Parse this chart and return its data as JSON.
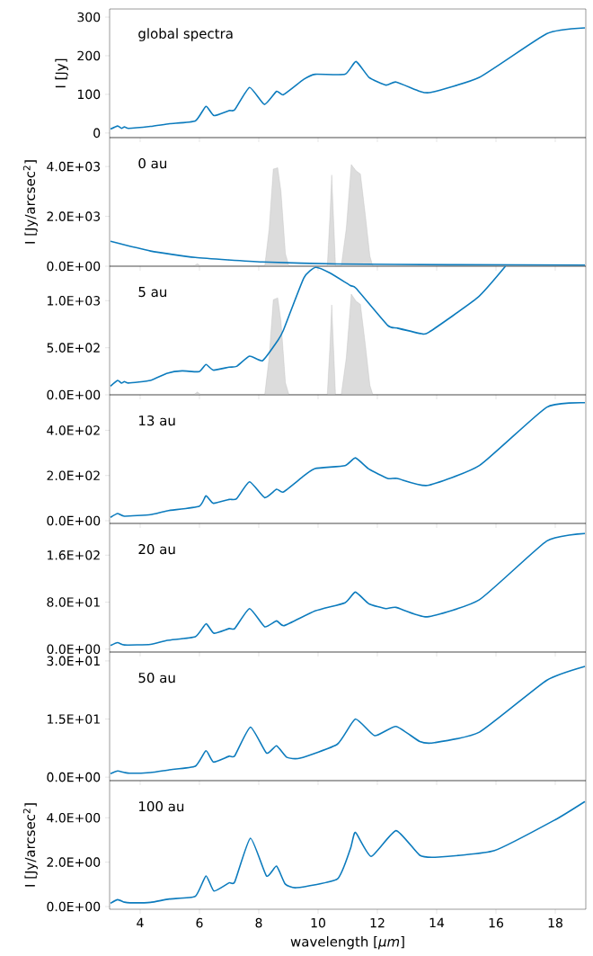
{
  "chart_data": [
    {
      "type": "line",
      "annotations": [
        "global spectra"
      ],
      "ylabel": "I [Jy]",
      "xlim": [
        2.97,
        19.03
      ],
      "ylim": [
        -12,
        321
      ],
      "xticks": [
        4,
        6,
        8,
        10,
        12,
        14,
        16,
        18
      ],
      "yticks": [
        0,
        100,
        200,
        300
      ],
      "tick_labels": "y",
      "series": [
        {
          "color": "#0c7bbd",
          "x": [
            3.0,
            3.24,
            3.37,
            3.47,
            3.6,
            4.35,
            5.0,
            5.86,
            6.22,
            6.49,
            7.0,
            7.19,
            7.69,
            8.19,
            8.6,
            8.83,
            9.52,
            9.9,
            10.91,
            11.28,
            11.72,
            12.29,
            12.63,
            13.43,
            13.8,
            15.44,
            17.71,
            19.0
          ],
          "values": [
            10,
            18,
            12,
            16,
            12,
            17,
            24,
            31,
            69,
            45,
            58,
            60,
            118,
            74,
            108,
            99,
            139,
            152,
            152,
            185,
            144,
            124,
            132,
            108,
            105,
            144,
            257,
            272
          ]
        }
      ]
    },
    {
      "type": "line",
      "annotations": [
        "0 au"
      ],
      "ylabel": "I [Jy/arcsec$^{2}$]",
      "xlim": [
        2.97,
        19.03
      ],
      "ylim": [
        0,
        5160
      ],
      "xticks": [
        4,
        6,
        8,
        10,
        12,
        14,
        16,
        18
      ],
      "yticks": [
        {
          "value": 0,
          "label": "0.0E+00"
        },
        {
          "value": 2000,
          "label": "2.0E+03"
        },
        {
          "value": 4000,
          "label": "4.0E+03"
        }
      ],
      "tick_labels": "y",
      "series": [
        {
          "type": "area",
          "color": "#dcdcdc",
          "x": [
            5.8,
            5.93,
            6.05,
            8.2,
            8.35,
            8.49,
            8.64,
            8.75,
            8.9,
            9.02,
            10.31,
            10.4,
            10.46,
            10.52,
            10.59,
            10.78,
            10.95,
            11.12,
            11.28,
            11.43,
            11.6,
            11.75,
            11.85
          ],
          "values": [
            0,
            100,
            0,
            0,
            1500,
            3900,
            3950,
            3000,
            500,
            0,
            0,
            2000,
            3660,
            2000,
            0,
            0,
            1500,
            4080,
            3830,
            3700,
            2000,
            400,
            0
          ]
        },
        {
          "color": "#0c7bbd",
          "x": [
            3.0,
            4.35,
            5.86,
            8.13,
            10.65,
            14.43,
            19.0
          ],
          "values": [
            1000,
            610,
            350,
            170,
            90,
            60,
            45
          ]
        }
      ]
    },
    {
      "type": "line",
      "annotations": [
        "5 au"
      ],
      "xlim": [
        2.97,
        19.03
      ],
      "ylim": [
        0,
        1366
      ],
      "xticks": [
        4,
        6,
        8,
        10,
        12,
        14,
        16,
        18
      ],
      "yticks": [
        {
          "value": 0,
          "label": "0.0E+00"
        },
        {
          "value": 500,
          "label": "5.0E+02"
        },
        {
          "value": 1000,
          "label": "1.0E+03"
        }
      ],
      "tick_labels": "y",
      "series": [
        {
          "type": "area",
          "color": "#dcdcdc",
          "x": [
            5.8,
            5.93,
            6.05,
            8.2,
            8.35,
            8.49,
            8.64,
            8.75,
            8.9,
            9.02,
            10.31,
            10.4,
            10.46,
            10.52,
            10.59,
            10.78,
            10.95,
            11.12,
            11.28,
            11.43,
            11.6,
            11.75,
            11.85
          ],
          "values": [
            0,
            30,
            0,
            0,
            400,
            1010,
            1030,
            780,
            130,
            0,
            0,
            520,
            955,
            520,
            0,
            0,
            390,
            1070,
            995,
            960,
            520,
            100,
            0
          ]
        },
        {
          "color": "#0c7bbd",
          "x": [
            3.0,
            3.24,
            3.37,
            3.47,
            3.6,
            4.35,
            4.92,
            5.42,
            5.99,
            6.22,
            6.47,
            7.0,
            7.25,
            7.69,
            8.13,
            8.64,
            8.83,
            9.52,
            9.92,
            10.4,
            11.09,
            11.28,
            12.35,
            12.67,
            13.49,
            13.74,
            15.38,
            16.32
          ],
          "values": [
            93,
            153,
            125,
            141,
            125,
            153,
            230,
            254,
            246,
            322,
            262,
            294,
            302,
            411,
            363,
            576,
            685,
            1241,
            1354,
            1294,
            1161,
            1132,
            737,
            709,
            649,
            665,
            1032,
            1366
          ]
        }
      ]
    },
    {
      "type": "line",
      "annotations": [
        "13 au"
      ],
      "xlim": [
        2.97,
        19.03
      ],
      "ylim": [
        -12,
        557
      ],
      "xticks": [
        4,
        6,
        8,
        10,
        12,
        14,
        16,
        18
      ],
      "yticks": [
        {
          "value": 0,
          "label": "0.0E+00"
        },
        {
          "value": 200,
          "label": "2.0E+02"
        },
        {
          "value": 400,
          "label": "4.0E+02"
        }
      ],
      "tick_labels": "y",
      "series": [
        {
          "color": "#0c7bbd",
          "x": [
            3.0,
            3.24,
            3.47,
            4.35,
            4.92,
            5.99,
            6.22,
            6.47,
            7.0,
            7.25,
            7.69,
            8.2,
            8.6,
            8.83,
            9.52,
            9.9,
            10.91,
            11.26,
            11.72,
            12.35,
            12.67,
            13.68,
            15.44,
            17.71,
            19.0
          ],
          "values": [
            15,
            32,
            20,
            27,
            44,
            64,
            110,
            77,
            94,
            97,
            172,
            102,
            139,
            127,
            198,
            231,
            244,
            278,
            228,
            187,
            187,
            156,
            244,
            502,
            522
          ]
        }
      ]
    },
    {
      "type": "line",
      "annotations": [
        "20 au"
      ],
      "xlim": [
        2.97,
        19.03
      ],
      "ylim": [
        -5,
        214
      ],
      "xticks": [
        4,
        6,
        8,
        10,
        12,
        14,
        16,
        18
      ],
      "yticks": [
        {
          "value": 0,
          "label": "0.0E+00"
        },
        {
          "value": 80,
          "label": "8.0E+01"
        },
        {
          "value": 160,
          "label": "1.6E+02"
        }
      ],
      "tick_labels": "y",
      "series": [
        {
          "color": "#0c7bbd",
          "x": [
            3.0,
            3.24,
            3.47,
            4.35,
            4.92,
            5.86,
            6.22,
            6.49,
            7.0,
            7.19,
            7.69,
            8.2,
            8.6,
            8.86,
            9.9,
            10.91,
            11.26,
            11.72,
            12.29,
            12.63,
            13.68,
            15.44,
            17.71,
            19.0
          ],
          "values": [
            6,
            11,
            7,
            8,
            15,
            21,
            43,
            27,
            35,
            35,
            69,
            38,
            48,
            40,
            65,
            79,
            97,
            77,
            69,
            71,
            55,
            84,
            184,
            197
          ]
        }
      ]
    },
    {
      "type": "line",
      "annotations": [
        "50 au"
      ],
      "xlim": [
        2.97,
        19.03
      ],
      "ylim": [
        -0.9,
        32.3
      ],
      "xticks": [
        4,
        6,
        8,
        10,
        12,
        14,
        16,
        18
      ],
      "yticks": [
        {
          "value": 0,
          "label": "0.0E+00"
        },
        {
          "value": 15,
          "label": "1.5E+01"
        },
        {
          "value": 30,
          "label": "3.0E+01"
        }
      ],
      "tick_labels": "y",
      "series": [
        {
          "color": "#0c7bbd",
          "x": [
            3.0,
            3.24,
            3.47,
            3.66,
            4.35,
            4.98,
            5.86,
            6.22,
            6.47,
            7.0,
            7.19,
            7.72,
            8.26,
            8.6,
            8.95,
            9.39,
            10.65,
            11.26,
            11.91,
            12.63,
            13.43,
            13.93,
            15.44,
            17.71,
            19.0
          ],
          "values": [
            0.9,
            1.6,
            1.2,
            1.0,
            1.2,
            1.9,
            2.8,
            6.8,
            3.9,
            5.4,
            5.5,
            12.9,
            6.2,
            8.1,
            5.1,
            4.9,
            8.5,
            15.0,
            10.7,
            13.1,
            9.2,
            8.9,
            11.6,
            25.0,
            28.6
          ]
        }
      ]
    },
    {
      "type": "line",
      "annotations": [
        "100 au"
      ],
      "ylabel": "I [Jy/arcsec$^{2}$]",
      "xlabel": "wavelength [*μm*]",
      "xlim": [
        2.97,
        19.03
      ],
      "ylim": [
        -0.12,
        5.67
      ],
      "xticks": [
        4,
        6,
        8,
        10,
        12,
        14,
        16,
        18
      ],
      "yticks": [
        {
          "value": 0,
          "label": "0.0E+00"
        },
        {
          "value": 2,
          "label": "2.0E+00"
        },
        {
          "value": 4,
          "label": "4.0E+00"
        }
      ],
      "series": [
        {
          "color": "#0c7bbd",
          "x": [
            3.0,
            3.24,
            3.47,
            3.66,
            4.35,
            4.98,
            5.86,
            6.22,
            6.49,
            7.0,
            7.19,
            7.72,
            8.26,
            8.6,
            8.89,
            9.27,
            10.65,
            11.09,
            11.26,
            11.79,
            12.63,
            13.43,
            14.06,
            15.95,
            18.0,
            19.0
          ],
          "values": [
            0.15,
            0.31,
            0.2,
            0.17,
            0.19,
            0.34,
            0.46,
            1.38,
            0.7,
            1.07,
            1.11,
            3.08,
            1.38,
            1.82,
            1.02,
            0.85,
            1.24,
            2.6,
            3.34,
            2.26,
            3.42,
            2.31,
            2.23,
            2.52,
            3.91,
            4.73
          ]
        }
      ]
    }
  ]
}
